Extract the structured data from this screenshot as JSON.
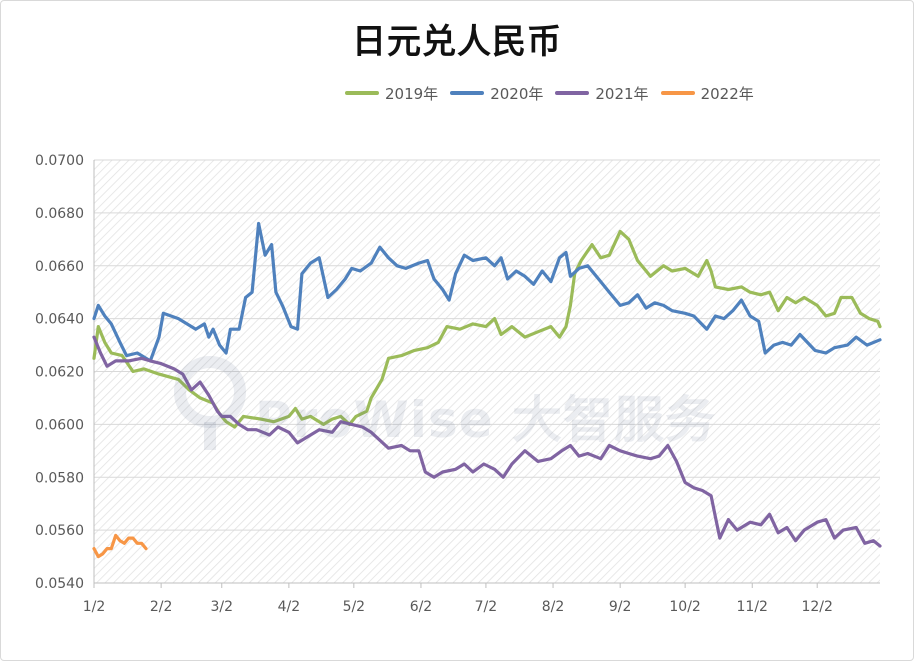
{
  "chart_data": {
    "type": "line",
    "title": "日元兑人民币",
    "xlabel": "",
    "ylabel": "",
    "x_axis": {
      "type": "date-in-year",
      "range": [
        "01-02",
        "12-31"
      ],
      "tick_labels": [
        "1/2",
        "2/2",
        "3/2",
        "4/2",
        "5/2",
        "6/2",
        "7/2",
        "8/2",
        "9/2",
        "10/2",
        "11/2",
        "12/2"
      ],
      "tick_dates": [
        "01-02",
        "02-02",
        "03-02",
        "04-02",
        "05-02",
        "06-02",
        "07-02",
        "08-02",
        "09-02",
        "10-02",
        "11-02",
        "12-02"
      ]
    },
    "y_axis": {
      "range": [
        0.054,
        0.07
      ],
      "tick_labels": [
        "0.0540",
        "0.0560",
        "0.0580",
        "0.0600",
        "0.0620",
        "0.0640",
        "0.0660",
        "0.0680",
        "0.0700"
      ],
      "tick_values": [
        0.054,
        0.056,
        0.058,
        0.06,
        0.062,
        0.064,
        0.066,
        0.068,
        0.07
      ]
    },
    "grid": true,
    "legend_position": "top",
    "series": [
      {
        "name": "2019年",
        "color": "#9bbb59",
        "points": [
          [
            "01-02",
            0.0625
          ],
          [
            "01-04",
            0.0637
          ],
          [
            "01-07",
            0.0631
          ],
          [
            "01-10",
            0.0627
          ],
          [
            "01-15",
            0.0626
          ],
          [
            "01-20",
            0.062
          ],
          [
            "01-25",
            0.0621
          ],
          [
            "02-01",
            0.0619
          ],
          [
            "02-10",
            0.0617
          ],
          [
            "02-15",
            0.0613
          ],
          [
            "02-20",
            0.061
          ],
          [
            "02-26",
            0.0608
          ],
          [
            "03-01",
            0.0604
          ],
          [
            "03-04",
            0.0601
          ],
          [
            "03-08",
            0.0599
          ],
          [
            "03-12",
            0.0603
          ],
          [
            "03-20",
            0.0602
          ],
          [
            "03-26",
            0.0601
          ],
          [
            "04-02",
            0.0603
          ],
          [
            "04-05",
            0.0606
          ],
          [
            "04-08",
            0.0602
          ],
          [
            "04-12",
            0.0603
          ],
          [
            "04-18",
            0.06
          ],
          [
            "04-22",
            0.0602
          ],
          [
            "04-26",
            0.0603
          ],
          [
            "04-30",
            0.06
          ],
          [
            "05-03",
            0.0603
          ],
          [
            "05-08",
            0.0605
          ],
          [
            "05-10",
            0.061
          ],
          [
            "05-15",
            0.0617
          ],
          [
            "05-18",
            0.0625
          ],
          [
            "05-24",
            0.0626
          ],
          [
            "05-30",
            0.0628
          ],
          [
            "06-05",
            0.0629
          ],
          [
            "06-10",
            0.0631
          ],
          [
            "06-14",
            0.0637
          ],
          [
            "06-20",
            0.0636
          ],
          [
            "06-26",
            0.0638
          ],
          [
            "07-02",
            0.0637
          ],
          [
            "07-06",
            0.064
          ],
          [
            "07-09",
            0.0634
          ],
          [
            "07-14",
            0.0637
          ],
          [
            "07-20",
            0.0633
          ],
          [
            "07-26",
            0.0635
          ],
          [
            "08-01",
            0.0637
          ],
          [
            "08-05",
            0.0633
          ],
          [
            "08-08",
            0.0637
          ],
          [
            "08-10",
            0.0645
          ],
          [
            "08-12",
            0.0657
          ],
          [
            "08-15",
            0.0662
          ],
          [
            "08-20",
            0.0668
          ],
          [
            "08-24",
            0.0663
          ],
          [
            "08-28",
            0.0664
          ],
          [
            "09-02",
            0.0673
          ],
          [
            "09-06",
            0.067
          ],
          [
            "09-10",
            0.0662
          ],
          [
            "09-16",
            0.0656
          ],
          [
            "09-22",
            0.066
          ],
          [
            "09-26",
            0.0658
          ],
          [
            "10-02",
            0.0659
          ],
          [
            "10-08",
            0.0656
          ],
          [
            "10-12",
            0.0662
          ],
          [
            "10-14",
            0.0658
          ],
          [
            "10-16",
            0.0652
          ],
          [
            "10-22",
            0.0651
          ],
          [
            "10-28",
            0.0652
          ],
          [
            "11-01",
            0.065
          ],
          [
            "11-06",
            0.0649
          ],
          [
            "11-10",
            0.065
          ],
          [
            "11-14",
            0.0643
          ],
          [
            "11-18",
            0.0648
          ],
          [
            "11-22",
            0.0646
          ],
          [
            "11-26",
            0.0648
          ],
          [
            "12-02",
            0.0645
          ],
          [
            "12-06",
            0.0641
          ],
          [
            "12-10",
            0.0642
          ],
          [
            "12-13",
            0.0648
          ],
          [
            "12-18",
            0.0648
          ],
          [
            "12-22",
            0.0642
          ],
          [
            "12-26",
            0.064
          ],
          [
            "12-30",
            0.0639
          ],
          [
            "12-31",
            0.0637
          ]
        ]
      },
      {
        "name": "2020年",
        "color": "#4f81bd",
        "points": [
          [
            "01-02",
            0.064
          ],
          [
            "01-04",
            0.0645
          ],
          [
            "01-07",
            0.0641
          ],
          [
            "01-10",
            0.0638
          ],
          [
            "01-14",
            0.0631
          ],
          [
            "01-17",
            0.0626
          ],
          [
            "01-22",
            0.0627
          ],
          [
            "01-28",
            0.0624
          ],
          [
            "02-01",
            0.0633
          ],
          [
            "02-03",
            0.0642
          ],
          [
            "02-10",
            0.064
          ],
          [
            "02-18",
            0.0636
          ],
          [
            "02-22",
            0.0638
          ],
          [
            "02-24",
            0.0633
          ],
          [
            "02-26",
            0.0636
          ],
          [
            "03-01",
            0.063
          ],
          [
            "03-04",
            0.0627
          ],
          [
            "03-06",
            0.0636
          ],
          [
            "03-10",
            0.0636
          ],
          [
            "03-13",
            0.0648
          ],
          [
            "03-16",
            0.065
          ],
          [
            "03-19",
            0.0676
          ],
          [
            "03-22",
            0.0664
          ],
          [
            "03-25",
            0.0668
          ],
          [
            "03-27",
            0.065
          ],
          [
            "03-30",
            0.0645
          ],
          [
            "04-03",
            0.0637
          ],
          [
            "04-06",
            0.0636
          ],
          [
            "04-08",
            0.0657
          ],
          [
            "04-12",
            0.0661
          ],
          [
            "04-16",
            0.0663
          ],
          [
            "04-20",
            0.0648
          ],
          [
            "04-24",
            0.0651
          ],
          [
            "04-28",
            0.0655
          ],
          [
            "05-01",
            0.0659
          ],
          [
            "05-05",
            0.0658
          ],
          [
            "05-10",
            0.0661
          ],
          [
            "05-14",
            0.0667
          ],
          [
            "05-18",
            0.0663
          ],
          [
            "05-22",
            0.066
          ],
          [
            "05-26",
            0.0659
          ],
          [
            "06-01",
            0.0661
          ],
          [
            "06-05",
            0.0662
          ],
          [
            "06-08",
            0.0655
          ],
          [
            "06-12",
            0.0651
          ],
          [
            "06-15",
            0.0647
          ],
          [
            "06-18",
            0.0657
          ],
          [
            "06-22",
            0.0664
          ],
          [
            "06-26",
            0.0662
          ],
          [
            "07-02",
            0.0663
          ],
          [
            "07-06",
            0.066
          ],
          [
            "07-09",
            0.0663
          ],
          [
            "07-12",
            0.0655
          ],
          [
            "07-16",
            0.0658
          ],
          [
            "07-20",
            0.0656
          ],
          [
            "07-24",
            0.0653
          ],
          [
            "07-28",
            0.0658
          ],
          [
            "08-01",
            0.0654
          ],
          [
            "08-05",
            0.0663
          ],
          [
            "08-08",
            0.0665
          ],
          [
            "08-10",
            0.0656
          ],
          [
            "08-14",
            0.0659
          ],
          [
            "08-18",
            0.066
          ],
          [
            "08-24",
            0.0654
          ],
          [
            "08-28",
            0.065
          ],
          [
            "09-02",
            0.0645
          ],
          [
            "09-06",
            0.0646
          ],
          [
            "09-10",
            0.0649
          ],
          [
            "09-14",
            0.0644
          ],
          [
            "09-18",
            0.0646
          ],
          [
            "09-22",
            0.0645
          ],
          [
            "09-26",
            0.0643
          ],
          [
            "10-02",
            0.0642
          ],
          [
            "10-06",
            0.0641
          ],
          [
            "10-12",
            0.0636
          ],
          [
            "10-16",
            0.0641
          ],
          [
            "10-20",
            0.064
          ],
          [
            "10-24",
            0.0643
          ],
          [
            "10-28",
            0.0647
          ],
          [
            "11-01",
            0.0641
          ],
          [
            "11-05",
            0.0639
          ],
          [
            "11-08",
            0.0627
          ],
          [
            "11-12",
            0.063
          ],
          [
            "11-16",
            0.0631
          ],
          [
            "11-20",
            0.063
          ],
          [
            "11-24",
            0.0634
          ],
          [
            "12-01",
            0.0628
          ],
          [
            "12-06",
            0.0627
          ],
          [
            "12-10",
            0.0629
          ],
          [
            "12-16",
            0.063
          ],
          [
            "12-20",
            0.0633
          ],
          [
            "12-25",
            0.063
          ],
          [
            "12-31",
            0.0632
          ]
        ]
      },
      {
        "name": "2021年",
        "color": "#8064a2",
        "points": [
          [
            "01-02",
            0.0633
          ],
          [
            "01-05",
            0.0627
          ],
          [
            "01-08",
            0.0622
          ],
          [
            "01-12",
            0.0624
          ],
          [
            "01-18",
            0.0624
          ],
          [
            "01-24",
            0.0625
          ],
          [
            "01-28",
            0.0624
          ],
          [
            "02-02",
            0.0623
          ],
          [
            "02-08",
            0.0621
          ],
          [
            "02-12",
            0.0619
          ],
          [
            "02-16",
            0.0613
          ],
          [
            "02-20",
            0.0616
          ],
          [
            "02-24",
            0.0611
          ],
          [
            "02-28",
            0.0605
          ],
          [
            "03-02",
            0.0603
          ],
          [
            "03-06",
            0.0603
          ],
          [
            "03-10",
            0.06
          ],
          [
            "03-14",
            0.0598
          ],
          [
            "03-18",
            0.0598
          ],
          [
            "03-24",
            0.0596
          ],
          [
            "03-28",
            0.0599
          ],
          [
            "04-02",
            0.0597
          ],
          [
            "04-06",
            0.0593
          ],
          [
            "04-10",
            0.0595
          ],
          [
            "04-16",
            0.0598
          ],
          [
            "04-22",
            0.0597
          ],
          [
            "04-26",
            0.0601
          ],
          [
            "05-01",
            0.06
          ],
          [
            "05-06",
            0.0599
          ],
          [
            "05-10",
            0.0597
          ],
          [
            "05-14",
            0.0594
          ],
          [
            "05-18",
            0.0591
          ],
          [
            "05-24",
            0.0592
          ],
          [
            "05-28",
            0.059
          ],
          [
            "06-01",
            0.059
          ],
          [
            "06-04",
            0.0582
          ],
          [
            "06-08",
            0.058
          ],
          [
            "06-12",
            0.0582
          ],
          [
            "06-18",
            0.0583
          ],
          [
            "06-22",
            0.0585
          ],
          [
            "06-26",
            0.0582
          ],
          [
            "07-01",
            0.0585
          ],
          [
            "07-06",
            0.0583
          ],
          [
            "07-10",
            0.058
          ],
          [
            "07-14",
            0.0585
          ],
          [
            "07-20",
            0.059
          ],
          [
            "07-26",
            0.0586
          ],
          [
            "08-01",
            0.0587
          ],
          [
            "08-06",
            0.059
          ],
          [
            "08-10",
            0.0592
          ],
          [
            "08-14",
            0.0588
          ],
          [
            "08-18",
            0.0589
          ],
          [
            "08-24",
            0.0587
          ],
          [
            "08-28",
            0.0592
          ],
          [
            "09-02",
            0.059
          ],
          [
            "09-06",
            0.0589
          ],
          [
            "09-10",
            0.0588
          ],
          [
            "09-16",
            0.0587
          ],
          [
            "09-20",
            0.0588
          ],
          [
            "09-24",
            0.0592
          ],
          [
            "09-28",
            0.0586
          ],
          [
            "10-02",
            0.0578
          ],
          [
            "10-06",
            0.0576
          ],
          [
            "10-10",
            0.0575
          ],
          [
            "10-14",
            0.0573
          ],
          [
            "10-16",
            0.0565
          ],
          [
            "10-18",
            0.0557
          ],
          [
            "10-22",
            0.0564
          ],
          [
            "10-26",
            0.056
          ],
          [
            "11-01",
            0.0563
          ],
          [
            "11-06",
            0.0562
          ],
          [
            "11-10",
            0.0566
          ],
          [
            "11-14",
            0.0559
          ],
          [
            "11-18",
            0.0561
          ],
          [
            "11-22",
            0.0556
          ],
          [
            "11-26",
            0.056
          ],
          [
            "12-02",
            0.0563
          ],
          [
            "12-06",
            0.0564
          ],
          [
            "12-10",
            0.0557
          ],
          [
            "12-14",
            0.056
          ],
          [
            "12-20",
            0.0561
          ],
          [
            "12-24",
            0.0555
          ],
          [
            "12-28",
            0.0556
          ],
          [
            "12-31",
            0.0554
          ]
        ]
      },
      {
        "name": "2022年",
        "color": "#f79646",
        "points": [
          [
            "01-02",
            0.0553
          ],
          [
            "01-04",
            0.055
          ],
          [
            "01-06",
            0.0551
          ],
          [
            "01-08",
            0.0553
          ],
          [
            "01-10",
            0.0553
          ],
          [
            "01-12",
            0.0558
          ],
          [
            "01-14",
            0.0556
          ],
          [
            "01-16",
            0.0555
          ],
          [
            "01-18",
            0.0557
          ],
          [
            "01-20",
            0.0557
          ],
          [
            "01-22",
            0.0555
          ],
          [
            "01-24",
            0.0555
          ],
          [
            "01-26",
            0.0553
          ]
        ]
      }
    ]
  },
  "watermark": {
    "text": "ProWise 大智服务",
    "icon": "prowise-logo-icon"
  }
}
